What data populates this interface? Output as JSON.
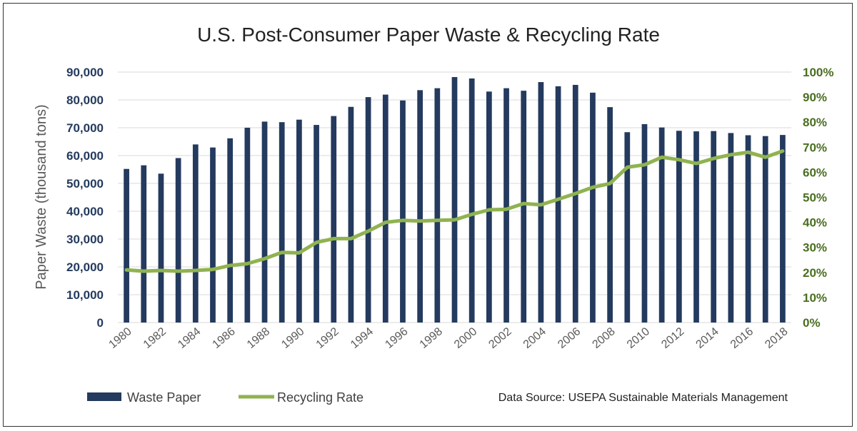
{
  "chart_data": {
    "type": "bar",
    "title": "U.S. Post-Consumer Paper Waste & Recycling Rate",
    "ylabel": "Paper Waste (thousand tons)",
    "y2label": "",
    "ylim": [
      0,
      90000
    ],
    "y2lim": [
      0,
      100
    ],
    "yticks": [
      "0",
      "10,000",
      "20,000",
      "30,000",
      "40,000",
      "50,000",
      "60,000",
      "70,000",
      "80,000",
      "90,000"
    ],
    "y2ticks": [
      "0%",
      "10%",
      "20%",
      "30%",
      "40%",
      "50%",
      "60%",
      "70%",
      "80%",
      "90%",
      "100%"
    ],
    "categories": [
      1980,
      1981,
      1982,
      1983,
      1984,
      1985,
      1986,
      1987,
      1988,
      1989,
      1990,
      1991,
      1992,
      1993,
      1994,
      1995,
      1996,
      1997,
      1998,
      1999,
      2000,
      2001,
      2002,
      2003,
      2004,
      2005,
      2006,
      2007,
      2008,
      2009,
      2010,
      2011,
      2012,
      2013,
      2014,
      2015,
      2016,
      2017,
      2018
    ],
    "xtick_labels": [
      "1980",
      "1982",
      "1984",
      "1986",
      "1988",
      "1990",
      "1992",
      "1994",
      "1996",
      "1998",
      "2000",
      "2002",
      "2004",
      "2006",
      "2008",
      "2010",
      "2012",
      "2014",
      "2016",
      "2018"
    ],
    "series": [
      {
        "name": "Waste Paper",
        "type": "bar",
        "color": "#243a5e",
        "axis": "left",
        "values": [
          55200,
          56500,
          53500,
          59100,
          64000,
          62900,
          66200,
          70000,
          72200,
          72000,
          72900,
          71000,
          74200,
          77500,
          81000,
          81900,
          79800,
          83500,
          84200,
          88200,
          87700,
          83000,
          84200,
          83300,
          86400,
          84900,
          85400,
          82600,
          77400,
          68400,
          71300,
          70100,
          68900,
          68700,
          68800,
          68100,
          67300,
          67000,
          67400
        ]
      },
      {
        "name": "Recycling Rate",
        "type": "line",
        "color": "#8fb350",
        "axis": "right",
        "values": [
          21,
          20.5,
          20.8,
          20.5,
          20.8,
          21.2,
          22.8,
          23.5,
          25.5,
          28,
          27.8,
          32,
          33.5,
          33.5,
          36.5,
          40,
          40.8,
          40.5,
          40.8,
          41,
          43.2,
          45,
          45.2,
          47.5,
          47,
          49.2,
          51.5,
          54,
          55.5,
          62,
          63,
          66,
          65,
          63.5,
          65.5,
          67,
          68,
          66,
          68.5
        ]
      }
    ],
    "legend_position": "bottom-left",
    "grid": true
  },
  "source": "Data Source: USEPA Sustainable Materials Management"
}
